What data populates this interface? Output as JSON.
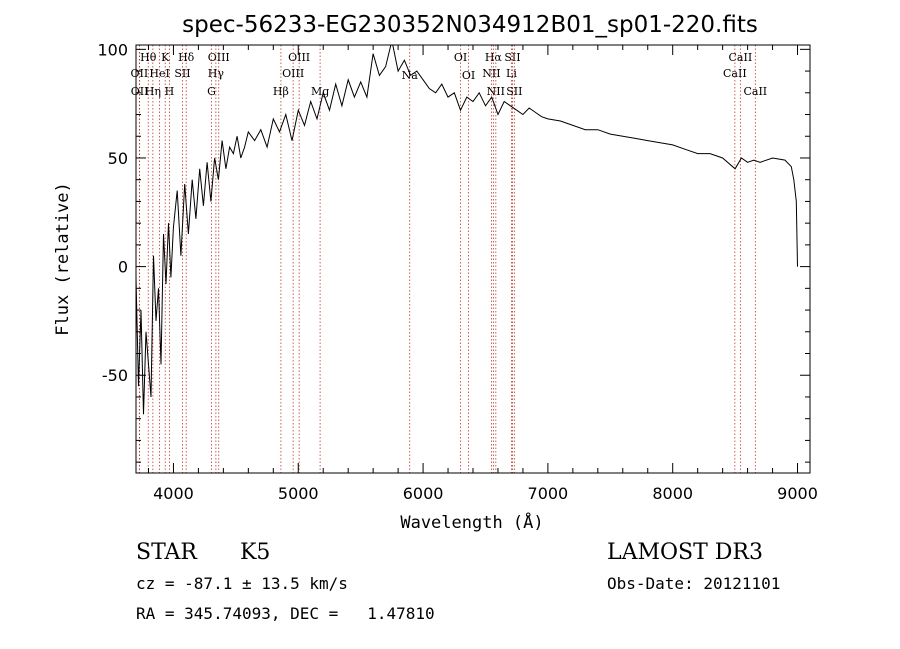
{
  "chart_data": {
    "type": "line",
    "title": "spec-56233-EG230352N034912B01_sp01-220.fits",
    "xlabel": "Wavelength (Å)",
    "ylabel": "Flux (relative)",
    "xlim": [
      3700,
      9100
    ],
    "ylim": [
      -95,
      102
    ],
    "xticks": [
      4000,
      5000,
      6000,
      7000,
      8000,
      9000
    ],
    "yticks": [
      -50,
      0,
      50,
      100
    ],
    "series": [
      {
        "name": "flux",
        "x": [
          3700,
          3720,
          3740,
          3760,
          3780,
          3800,
          3820,
          3840,
          3860,
          3880,
          3900,
          3920,
          3940,
          3960,
          3980,
          4000,
          4030,
          4060,
          4090,
          4120,
          4150,
          4180,
          4210,
          4240,
          4270,
          4300,
          4330,
          4360,
          4390,
          4420,
          4450,
          4480,
          4510,
          4540,
          4570,
          4600,
          4650,
          4700,
          4750,
          4800,
          4850,
          4900,
          4950,
          5000,
          5050,
          5100,
          5150,
          5200,
          5250,
          5300,
          5350,
          5400,
          5450,
          5500,
          5550,
          5600,
          5650,
          5700,
          5750,
          5800,
          5850,
          5900,
          5950,
          6000,
          6050,
          6100,
          6150,
          6200,
          6250,
          6300,
          6350,
          6400,
          6450,
          6500,
          6550,
          6600,
          6650,
          6700,
          6750,
          6800,
          6850,
          6900,
          6950,
          7000,
          7100,
          7200,
          7300,
          7400,
          7500,
          7600,
          7700,
          7800,
          7900,
          8000,
          8100,
          8200,
          8300,
          8400,
          8500,
          8550,
          8600,
          8650,
          8700,
          8800,
          8900,
          8950,
          8970,
          8990,
          9000
        ],
        "y": [
          -5,
          -55,
          -20,
          -68,
          -30,
          -45,
          -60,
          5,
          -25,
          -10,
          -45,
          15,
          -8,
          20,
          -5,
          18,
          35,
          5,
          38,
          15,
          40,
          22,
          45,
          28,
          48,
          30,
          50,
          40,
          58,
          45,
          55,
          52,
          60,
          50,
          55,
          62,
          58,
          63,
          55,
          68,
          62,
          70,
          58,
          72,
          65,
          76,
          68,
          80,
          72,
          84,
          74,
          86,
          78,
          85,
          78,
          98,
          88,
          92,
          104,
          90,
          95,
          88,
          90,
          86,
          82,
          80,
          84,
          78,
          80,
          72,
          78,
          76,
          80,
          74,
          78,
          70,
          76,
          74,
          72,
          70,
          73,
          71,
          69,
          68,
          67,
          65,
          63,
          63,
          61,
          60,
          59,
          58,
          57,
          56,
          54,
          52,
          52,
          50,
          45,
          50,
          48,
          49,
          48,
          50,
          49,
          46,
          40,
          30,
          0
        ]
      }
    ],
    "spectral_lines": [
      {
        "label": "Hθ",
        "x": 3798,
        "row": 0
      },
      {
        "label": "K",
        "x": 3934,
        "row": 0
      },
      {
        "label": "Hδ",
        "x": 4102,
        "row": 0
      },
      {
        "label": "OIII",
        "x": 4363,
        "row": 0
      },
      {
        "label": "OIII",
        "x": 5007,
        "row": 0
      },
      {
        "label": "OI",
        "x": 6300,
        "row": 0
      },
      {
        "label": "Hα",
        "x": 6563,
        "row": 0
      },
      {
        "label": "SII",
        "x": 6716,
        "row": 0
      },
      {
        "label": "CaII",
        "x": 8542,
        "row": 0
      },
      {
        "label": "OII",
        "x": 3727,
        "row": 1
      },
      {
        "label": "HeI",
        "x": 3889,
        "row": 1
      },
      {
        "label": "SII",
        "x": 4072,
        "row": 1
      },
      {
        "label": "Hγ",
        "x": 4340,
        "row": 1
      },
      {
        "label": "OIII",
        "x": 4959,
        "row": 1
      },
      {
        "label": "NII",
        "x": 6548,
        "row": 1
      },
      {
        "label": "Li",
        "x": 6708,
        "row": 1
      },
      {
        "label": "CaII",
        "x": 8498,
        "row": 1
      },
      {
        "label": "OII",
        "x": 3729,
        "row": 2
      },
      {
        "label": "Hη",
        "x": 3835,
        "row": 2
      },
      {
        "label": "H",
        "x": 3968,
        "row": 2
      },
      {
        "label": "G",
        "x": 4305,
        "row": 2
      },
      {
        "label": "Hβ",
        "x": 4861,
        "row": 2
      },
      {
        "label": "Mg",
        "x": 5175,
        "row": 2
      },
      {
        "label": "Na",
        "x": 5893,
        "row": 3
      },
      {
        "label": "OI",
        "x": 6364,
        "row": 3
      },
      {
        "label": "NII",
        "x": 6583,
        "row": 2
      },
      {
        "label": "SII",
        "x": 6731,
        "row": 2
      },
      {
        "label": "CaII",
        "x": 8662,
        "row": 2
      }
    ]
  },
  "info": {
    "class": "STAR",
    "subclass": "K5",
    "survey": "LAMOST DR3",
    "cz": "cz = -87.1 ± 13.5 km/s",
    "obs_date": "Obs-Date: 20121101",
    "coords": "RA = 345.74093, DEC =   1.47810"
  }
}
